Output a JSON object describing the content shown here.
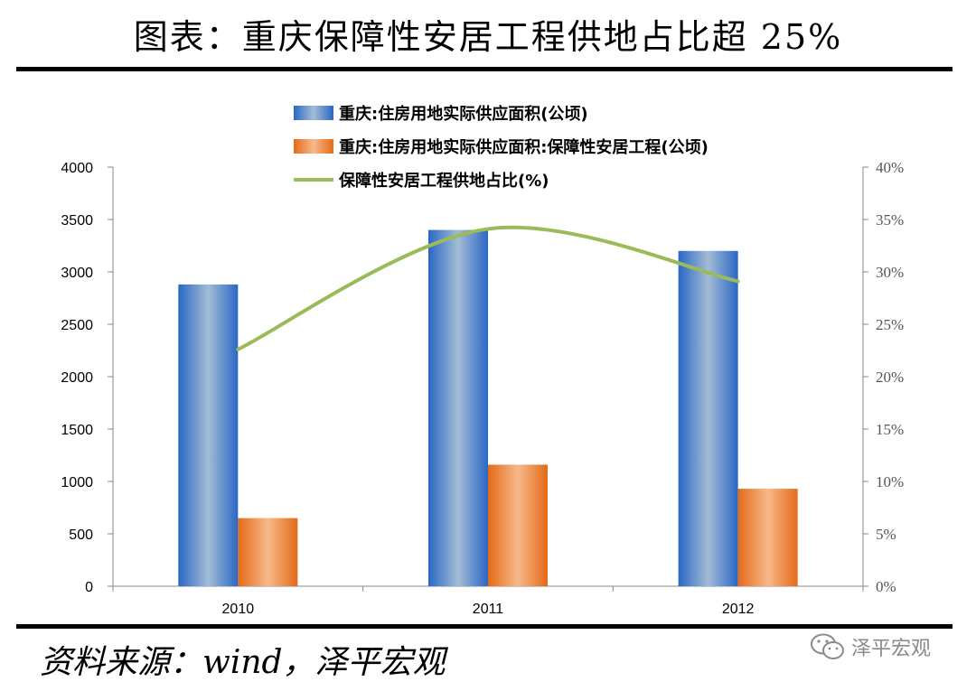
{
  "page": {
    "title": "图表：重庆保障性安居工程供地占比超 25%",
    "source": "资料来源：wind，泽平宏观",
    "watermark": "泽平宏观"
  },
  "chart_data": {
    "type": "bar",
    "categories": [
      "2010",
      "2011",
      "2012"
    ],
    "series": [
      {
        "name": "重庆:住房用地实际供应面积(公顷)",
        "type": "bar",
        "axis": "left",
        "values": [
          2880,
          3400,
          3200
        ],
        "color": "#4f81bd"
      },
      {
        "name": "重庆:住房用地实际供应面积:保障性安居工程(公顷)",
        "type": "bar",
        "axis": "left",
        "values": [
          650,
          1160,
          930
        ],
        "color": "#e46c0a"
      },
      {
        "name": "保障性安居工程供地占比(%)",
        "type": "line",
        "axis": "right",
        "values": [
          22.6,
          34.1,
          29.1
        ],
        "color": "#9bbb59"
      }
    ],
    "y_left": {
      "min": 0,
      "max": 4000,
      "ticks": [
        "0",
        "500",
        "1000",
        "1500",
        "2000",
        "2500",
        "3000",
        "3500",
        "4000"
      ]
    },
    "y_right": {
      "min": 0,
      "max": 40,
      "ticks": [
        "0%",
        "5%",
        "10%",
        "15%",
        "20%",
        "25%",
        "30%",
        "35%",
        "40%"
      ]
    },
    "legend_position": "top",
    "grid": false
  }
}
